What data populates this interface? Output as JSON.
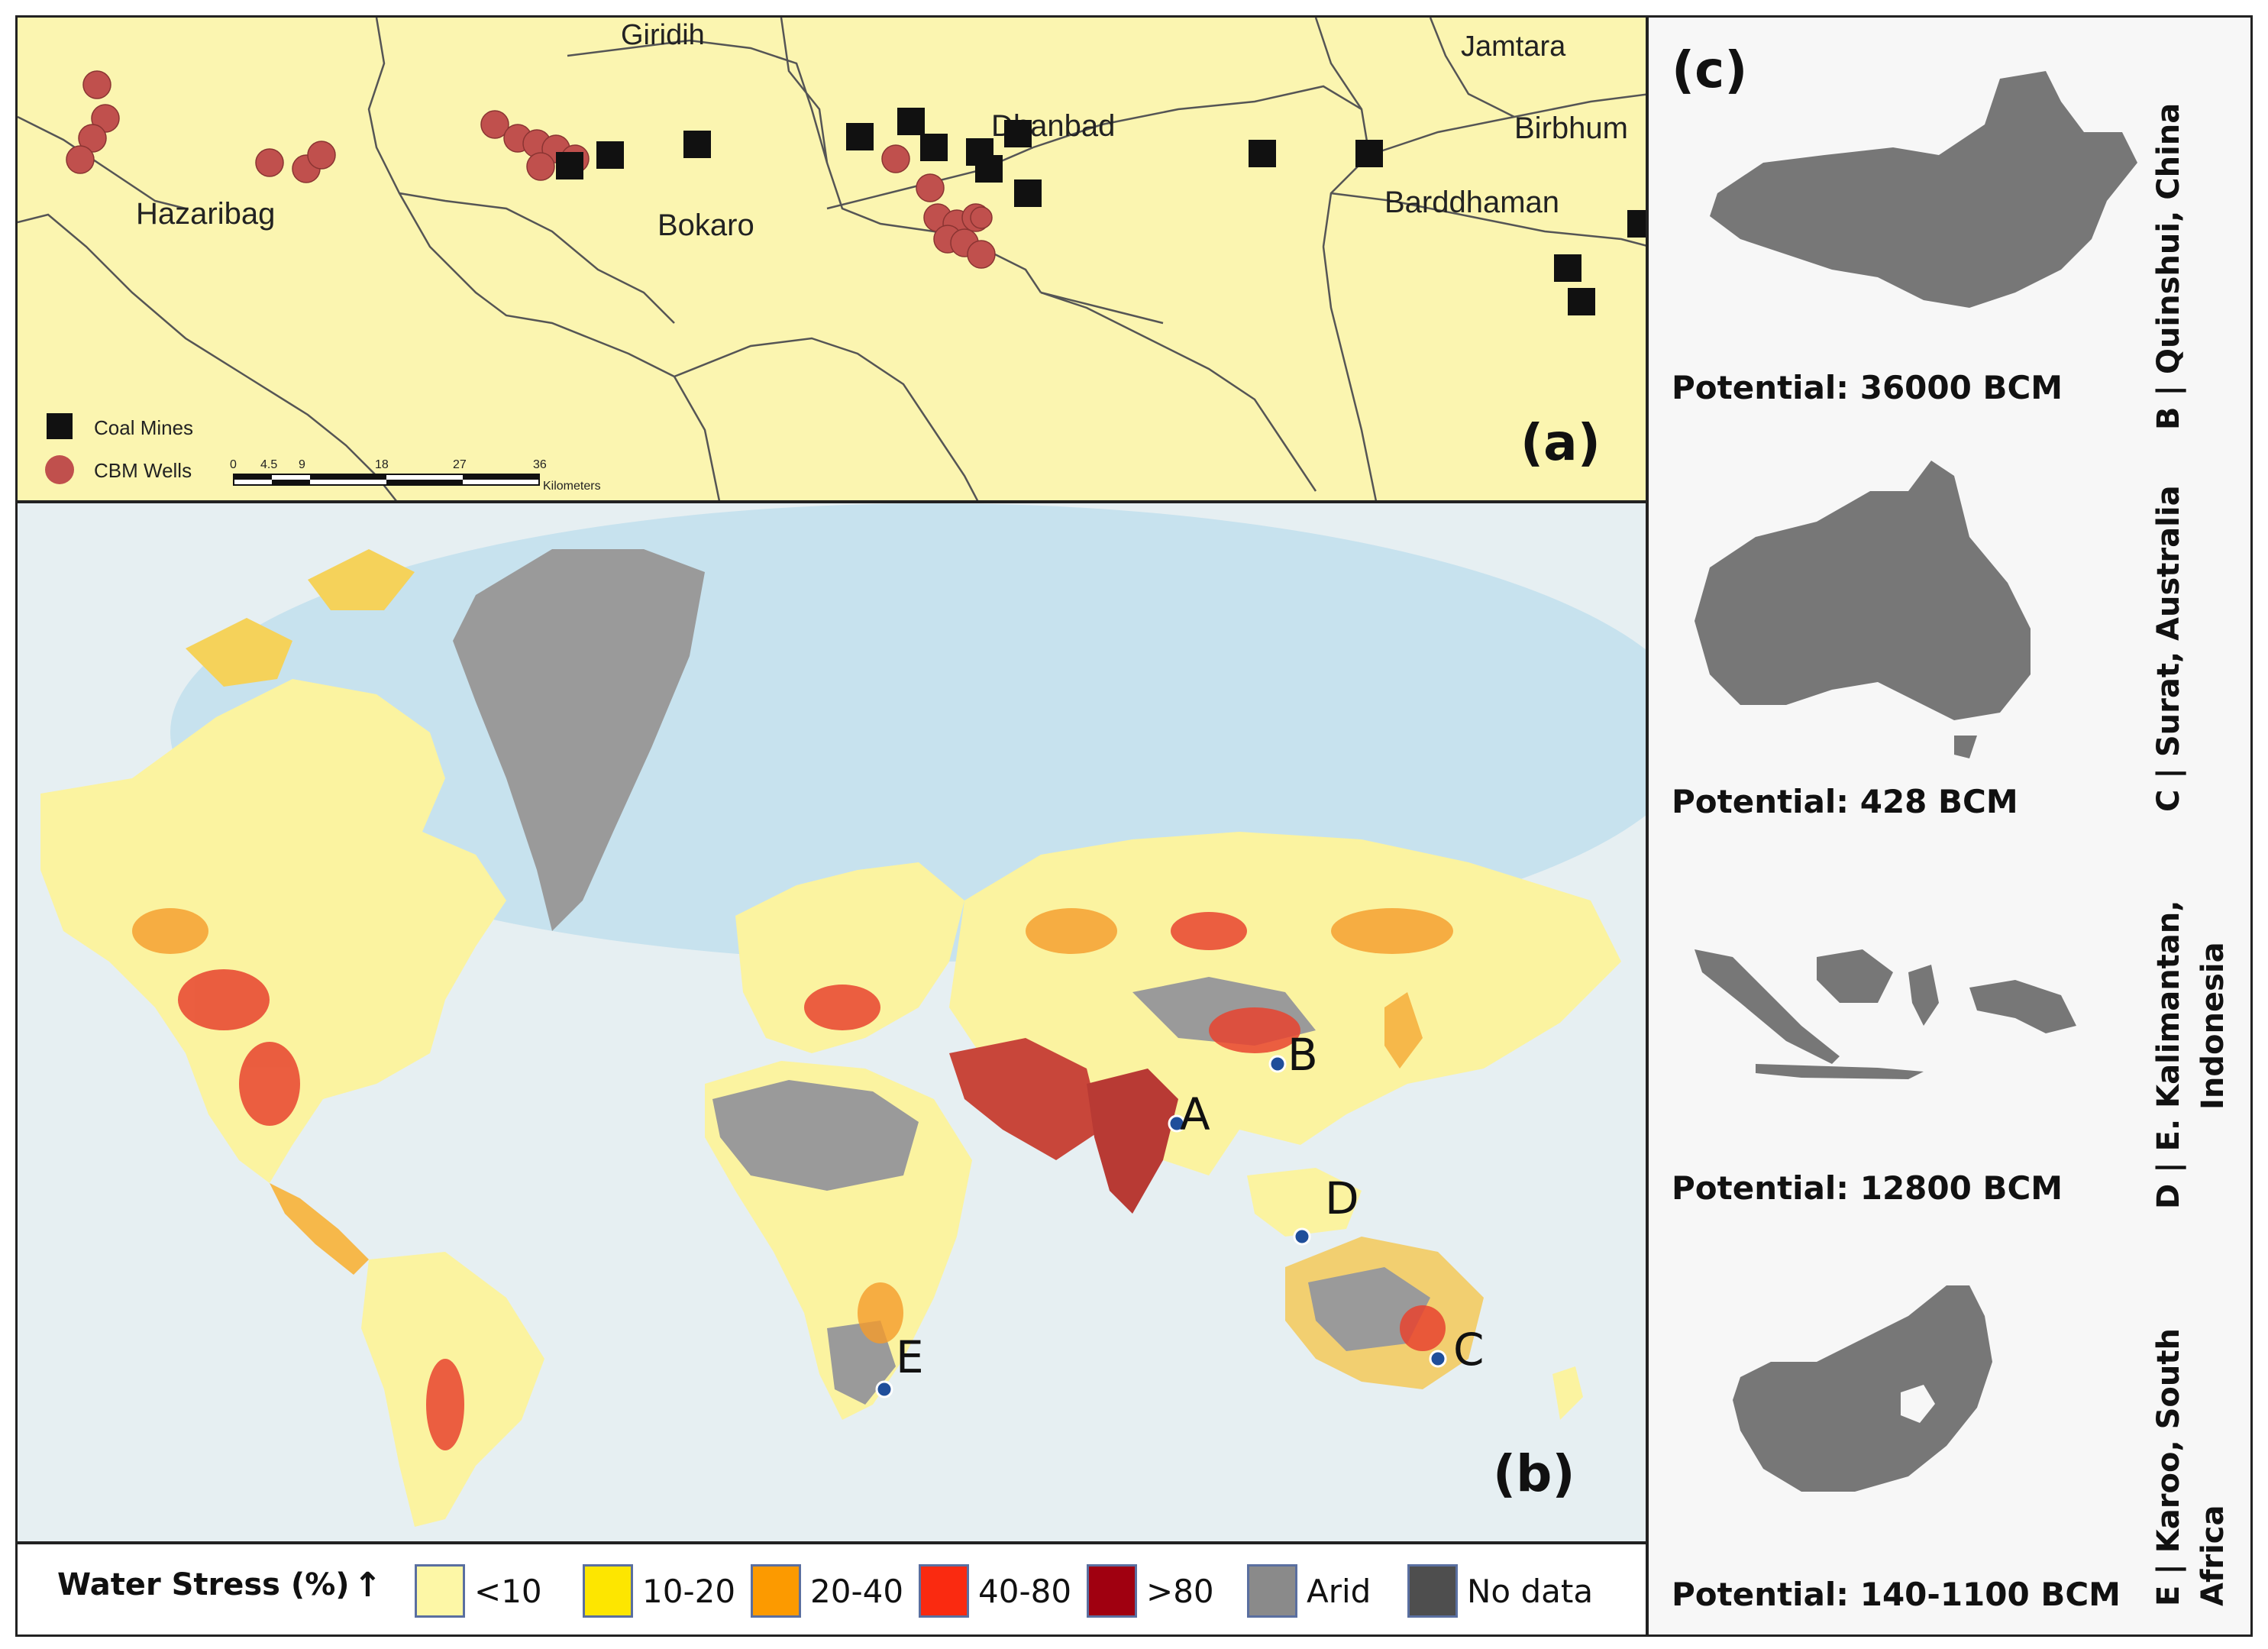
{
  "panel_a": {
    "letter": "(a)",
    "places": [
      "Giridih",
      "Jamtara",
      "Hazaribag",
      "Bokaro",
      "Dhanbad",
      "Birbhum",
      "Barddhaman"
    ],
    "legend": {
      "coal": "Coal Mines",
      "cbm": "CBM Wells"
    },
    "scale": {
      "ticks": [
        "0",
        "4.5",
        "9",
        "18",
        "27",
        "36"
      ],
      "unit": "Kilometers"
    }
  },
  "panel_b": {
    "letter": "(b)",
    "sites": [
      "A",
      "B",
      "C",
      "D",
      "E"
    ]
  },
  "legend": {
    "title": "Water Stress (%)",
    "arrow": "↑",
    "items": [
      {
        "label": "<10",
        "color": "#fdf7a6"
      },
      {
        "label": "10-20",
        "color": "#fde600"
      },
      {
        "label": "20-40",
        "color": "#fc9a00"
      },
      {
        "label": "40-80",
        "color": "#fa2a10"
      },
      {
        "label": ">80",
        "color": "#a00010"
      },
      {
        "label": "Arid",
        "color": "#8a8a8a"
      },
      {
        "label": "No data",
        "color": "#4e4e4e"
      }
    ]
  },
  "panel_c": {
    "letter": "(c)",
    "basins": [
      {
        "name": "B | Quinshui, China",
        "potential": "Potential: 36000 BCM"
      },
      {
        "name": "C | Surat, Australia",
        "potential": "Potential: 428 BCM"
      },
      {
        "name_line1": "D | E. Kalimantan,",
        "name_line2": "Indonesia",
        "potential": "Potential: 12800 BCM"
      },
      {
        "name_line1": "E | Karoo, South",
        "name_line2": "Africa",
        "potential": "Potential: 140-1100 BCM"
      }
    ]
  },
  "colors": {
    "coal": "#111111",
    "cbm": "#c0504d",
    "site_dot": "#1f4e9a",
    "land_shape": "#777777"
  }
}
